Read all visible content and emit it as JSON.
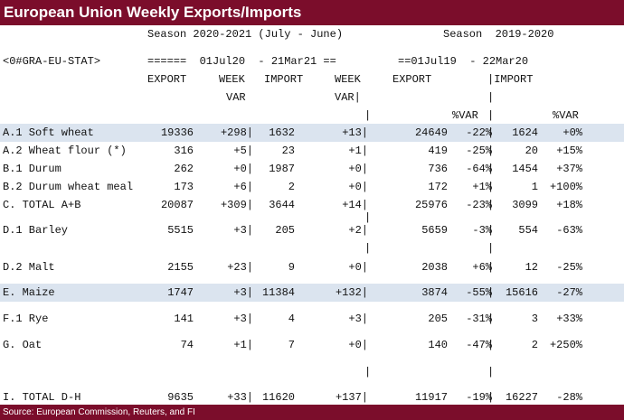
{
  "title": "European Union Weekly Exports/Imports",
  "header": {
    "season_current": "Season 2020-2021 (July - June)",
    "season_prev": "Season  2019-2020",
    "ric": "<0#GRA-EU-STAT>",
    "range_current": "======  01Jul20  - 21Mar21 ==",
    "range_prev": "==01Jul19  - 22Mar20",
    "col_export": "EXPORT",
    "col_week_a": "WEEK",
    "col_var_a": "VAR",
    "col_import": "IMPORT",
    "col_week_b": "WEEK",
    "col_var_b": "VAR|",
    "col_export_prev": "EXPORT",
    "col_import_prev": "|IMPORT",
    "pct_var_1": "%VAR",
    "pct_var_2": "%VAR"
  },
  "rows": [
    {
      "label": "A.1 Soft wheat",
      "export": "19336",
      "week_var_exp": "+298|",
      "import": "1632",
      "week_var_imp": "+13|",
      "export_prev": "24649",
      "var_exp": "-22%",
      "import_prev": "1624",
      "var_imp": "+0%"
    },
    {
      "label": "A.2 Wheat flour (*)",
      "export": "316",
      "week_var_exp": "+5|",
      "import": "23",
      "week_var_imp": "+1|",
      "export_prev": "419",
      "var_exp": "-25%",
      "import_prev": "20",
      "var_imp": "+15%"
    },
    {
      "label": "B.1 Durum",
      "export": "262",
      "week_var_exp": "+0|",
      "import": "1987",
      "week_var_imp": "+0|",
      "export_prev": "736",
      "var_exp": "-64%",
      "import_prev": "1454",
      "var_imp": "+37%"
    },
    {
      "label": "B.2 Durum wheat meal",
      "export": "173",
      "week_var_exp": "+6|",
      "import": "2",
      "week_var_imp": "+0|",
      "export_prev": "172",
      "var_exp": "+1%",
      "import_prev": "1",
      "var_imp": "+100%"
    },
    {
      "label": "C. TOTAL A+B",
      "export": "20087",
      "week_var_exp": "+309|",
      "import": "3644",
      "week_var_imp": "+14|",
      "export_prev": "25976",
      "var_exp": "-23%",
      "import_prev": "3099",
      "var_imp": "+18%"
    },
    {
      "label": "D.1 Barley",
      "export": "5515",
      "week_var_exp": "+3|",
      "import": "205",
      "week_var_imp": "+2|",
      "export_prev": "5659",
      "var_exp": "-3%",
      "import_prev": "554",
      "var_imp": "-63%"
    },
    {
      "label": "D.2 Malt",
      "export": "2155",
      "week_var_exp": "+23|",
      "import": "9",
      "week_var_imp": "+0|",
      "export_prev": "2038",
      "var_exp": "+6%",
      "import_prev": "12",
      "var_imp": "-25%"
    },
    {
      "label": "E. Maize",
      "export": "1747",
      "week_var_exp": "+3|",
      "import": "11384",
      "week_var_imp": "+132|",
      "export_prev": "3874",
      "var_exp": "-55%",
      "import_prev": "15616",
      "var_imp": "-27%"
    },
    {
      "label": "F.1 Rye",
      "export": "141",
      "week_var_exp": "+3|",
      "import": "4",
      "week_var_imp": "+3|",
      "export_prev": "205",
      "var_exp": "-31%",
      "import_prev": "3",
      "var_imp": "+33%"
    },
    {
      "label": "G. Oat",
      "export": "74",
      "week_var_exp": "+1|",
      "import": "7",
      "week_var_imp": "+0|",
      "export_prev": "140",
      "var_exp": "-47%",
      "import_prev": "2",
      "var_imp": "+250%"
    },
    {
      "label": "I. TOTAL D-H",
      "export": "9635",
      "week_var_exp": "+33|",
      "import": "11620",
      "week_var_imp": "+137|",
      "export_prev": "11917",
      "var_exp": "-19%",
      "import_prev": "16227",
      "var_imp": "-28%"
    }
  ],
  "pipe": "|",
  "footer": "Source: European Commission, Reuters, and FI",
  "colors": {
    "brand": "#7b0d2b",
    "highlight": "#dbe4ef"
  }
}
